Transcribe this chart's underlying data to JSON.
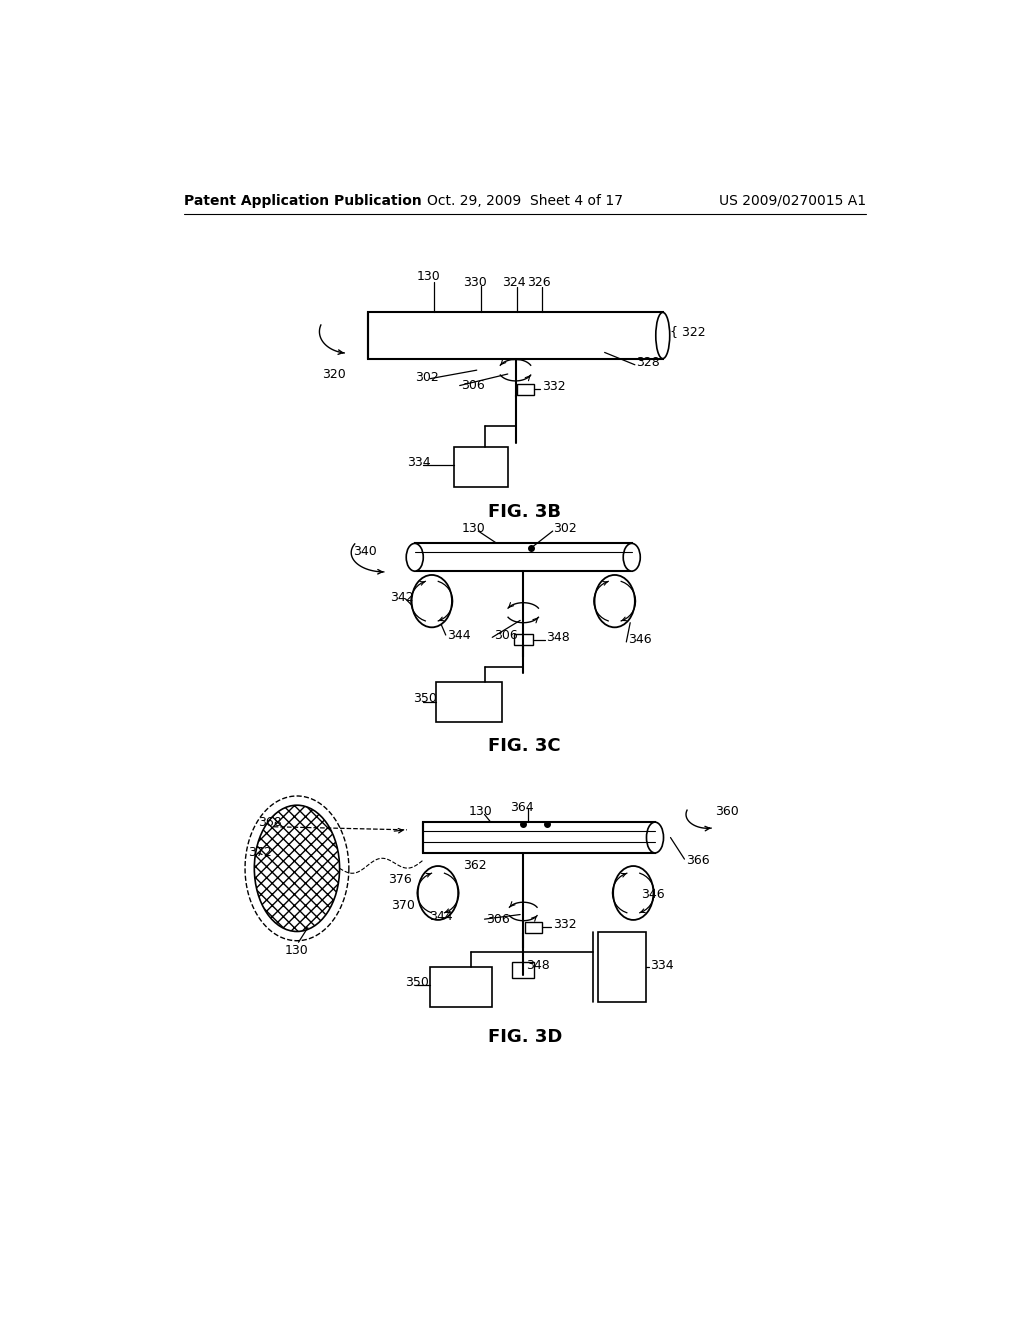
{
  "bg_color": "#ffffff",
  "text_color": "#000000",
  "line_color": "#000000",
  "header_left": "Patent Application Publication",
  "header_center": "Oct. 29, 2009  Sheet 4 of 17",
  "header_right": "US 2009/0270015 A1"
}
